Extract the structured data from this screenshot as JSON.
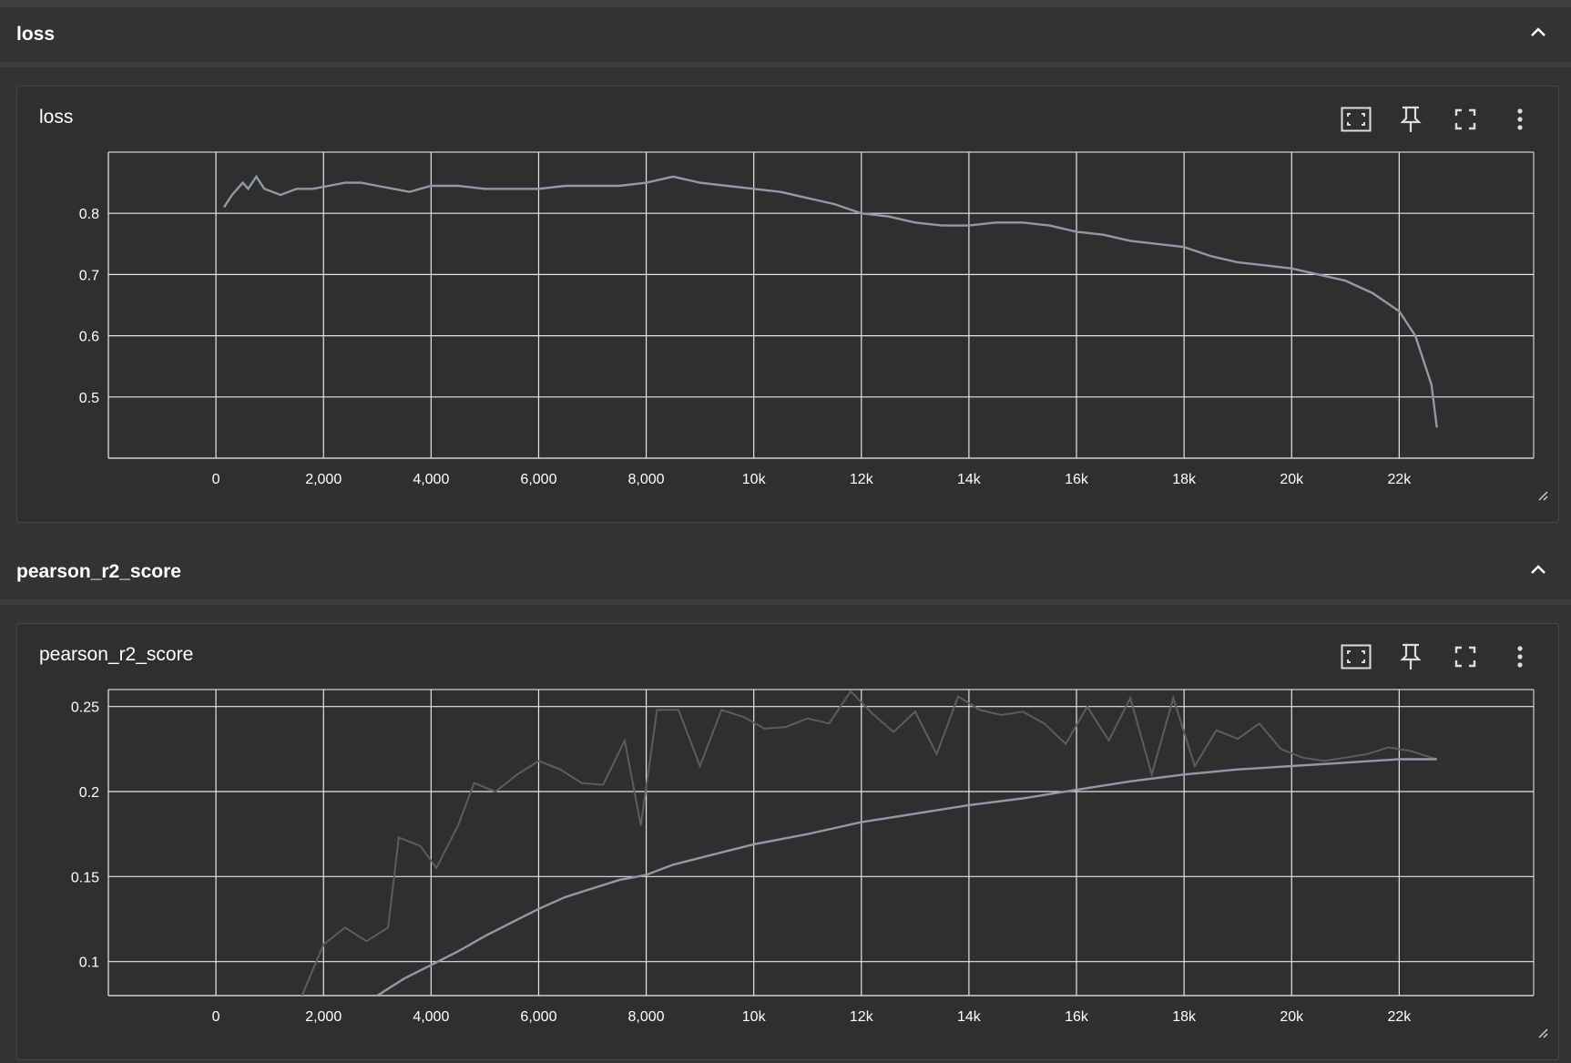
{
  "groups": [
    {
      "title": "loss",
      "card_title": "loss"
    },
    {
      "title": "pearson_r2_score",
      "card_title": "pearson_r2_score"
    }
  ],
  "toolbar": {
    "icons": [
      "fit-domain-icon",
      "pin-icon",
      "fullscreen-icon",
      "more-vert-icon"
    ]
  },
  "colors": {
    "background": "#333333",
    "card": "#2f2f2f",
    "grid": "#e6e6e6",
    "smoothed_line": "#8f9aa8",
    "raw_line": "#5a5d62"
  },
  "chart_data": [
    {
      "type": "line",
      "title": "",
      "xlabel": "",
      "ylabel": "",
      "xlim": [
        -2000,
        24500
      ],
      "ylim": [
        0.4,
        0.9
      ],
      "x_ticks": [
        0,
        2000,
        4000,
        6000,
        8000,
        10000,
        12000,
        14000,
        16000,
        18000,
        20000,
        22000
      ],
      "x_tick_labels": [
        "0",
        "2,000",
        "4,000",
        "6,000",
        "8,000",
        "10k",
        "12k",
        "14k",
        "16k",
        "18k",
        "20k",
        "22k"
      ],
      "y_ticks": [
        0.5,
        0.6,
        0.7,
        0.8
      ],
      "y_tick_labels": [
        "0.5",
        "0.6",
        "0.7",
        "0.8"
      ],
      "grid": true,
      "series": [
        {
          "x": [
            150,
            300,
            400,
            500,
            600,
            750,
            900,
            1200,
            1500,
            1800,
            2100,
            2400,
            2700,
            3000,
            3300,
            3600,
            4000,
            4500,
            5000,
            5500,
            6000,
            6500,
            7000,
            7500,
            8000,
            8500,
            9000,
            9500,
            10000,
            10500,
            11000,
            11500,
            12000,
            12500,
            13000,
            13500,
            14000,
            14500,
            15000,
            15500,
            16000,
            16500,
            17000,
            17500,
            18000,
            18500,
            19000,
            19500,
            20000,
            20500,
            21000,
            21500,
            22000,
            22300,
            22600,
            22700
          ],
          "values": [
            0.81,
            0.83,
            0.84,
            0.85,
            0.84,
            0.86,
            0.84,
            0.83,
            0.84,
            0.84,
            0.845,
            0.85,
            0.85,
            0.845,
            0.84,
            0.835,
            0.845,
            0.845,
            0.84,
            0.84,
            0.84,
            0.845,
            0.845,
            0.845,
            0.85,
            0.86,
            0.85,
            0.845,
            0.84,
            0.835,
            0.825,
            0.815,
            0.8,
            0.795,
            0.785,
            0.78,
            0.78,
            0.785,
            0.785,
            0.78,
            0.77,
            0.765,
            0.755,
            0.75,
            0.745,
            0.73,
            0.72,
            0.715,
            0.71,
            0.7,
            0.69,
            0.67,
            0.64,
            0.6,
            0.52,
            0.45
          ]
        }
      ]
    },
    {
      "type": "line",
      "title": "",
      "xlabel": "",
      "ylabel": "",
      "xlim": [
        -2000,
        24500
      ],
      "ylim": [
        0.08,
        0.26
      ],
      "x_ticks": [
        0,
        2000,
        4000,
        6000,
        8000,
        10000,
        12000,
        14000,
        16000,
        18000,
        20000,
        22000
      ],
      "x_tick_labels": [
        "0",
        "2,000",
        "4,000",
        "6,000",
        "8,000",
        "10k",
        "12k",
        "14k",
        "16k",
        "18k",
        "20k",
        "22k"
      ],
      "y_ticks": [
        0.1,
        0.15,
        0.2,
        0.25
      ],
      "y_tick_labels": [
        "0.1",
        "0.15",
        "0.2",
        "0.25"
      ],
      "grid": true,
      "series": [
        {
          "x": [
            3000,
            3500,
            4000,
            4500,
            5000,
            5500,
            6000,
            6500,
            7000,
            7500,
            8000,
            8500,
            9000,
            9500,
            10000,
            11000,
            12000,
            13000,
            14000,
            15000,
            16000,
            17000,
            18000,
            19000,
            20000,
            21000,
            22000,
            22700
          ],
          "values": [
            0.08,
            0.09,
            0.098,
            0.106,
            0.115,
            0.123,
            0.131,
            0.138,
            0.143,
            0.148,
            0.151,
            0.157,
            0.161,
            0.165,
            0.169,
            0.175,
            0.182,
            0.187,
            0.192,
            0.196,
            0.201,
            0.206,
            0.21,
            0.213,
            0.215,
            0.217,
            0.219,
            0.219
          ]
        },
        {
          "x": [
            1600,
            2000,
            2400,
            2800,
            3200,
            3400,
            3800,
            4100,
            4500,
            4800,
            5200,
            5600,
            6000,
            6400,
            6800,
            7200,
            7600,
            7900,
            8200,
            8600,
            9000,
            9400,
            9800,
            10200,
            10600,
            11000,
            11400,
            11800,
            12200,
            12600,
            13000,
            13400,
            13800,
            14200,
            14600,
            15000,
            15400,
            15800,
            16200,
            16600,
            17000,
            17400,
            17800,
            18200,
            18600,
            19000,
            19400,
            19800,
            20200,
            20600,
            21000,
            21400,
            21800,
            22200,
            22600,
            22700
          ],
          "values": [
            0.08,
            0.11,
            0.12,
            0.112,
            0.12,
            0.173,
            0.168,
            0.155,
            0.18,
            0.205,
            0.2,
            0.21,
            0.218,
            0.213,
            0.205,
            0.204,
            0.23,
            0.18,
            0.248,
            0.248,
            0.215,
            0.248,
            0.244,
            0.237,
            0.238,
            0.243,
            0.24,
            0.259,
            0.246,
            0.235,
            0.247,
            0.222,
            0.256,
            0.248,
            0.245,
            0.247,
            0.24,
            0.228,
            0.25,
            0.23,
            0.255,
            0.21,
            0.255,
            0.215,
            0.236,
            0.231,
            0.24,
            0.225,
            0.22,
            0.218,
            0.22,
            0.222,
            0.226,
            0.224,
            0.22,
            0.219
          ]
        }
      ]
    }
  ]
}
